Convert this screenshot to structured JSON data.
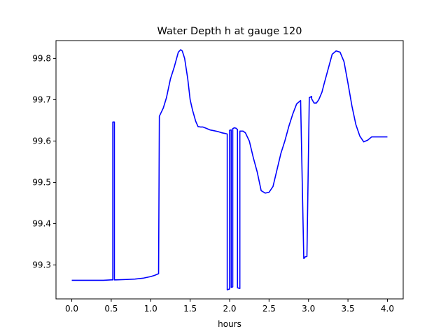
{
  "chart_data": {
    "type": "line",
    "title": "Water Depth h at gauge 120",
    "xlabel": "hours",
    "ylabel": "",
    "xlim": [
      -0.2,
      4.2
    ],
    "ylim": [
      99.218,
      99.843
    ],
    "xticks": [
      0.0,
      0.5,
      1.0,
      1.5,
      2.0,
      2.5,
      3.0,
      3.5,
      4.0
    ],
    "xtick_labels": [
      "0.0",
      "0.5",
      "1.0",
      "1.5",
      "2.0",
      "2.5",
      "3.0",
      "3.5",
      "4.0"
    ],
    "yticks": [
      99.3,
      99.4,
      99.5,
      99.6,
      99.7,
      99.8
    ],
    "ytick_labels": [
      "99.3",
      "99.4",
      "99.5",
      "99.6",
      "99.7",
      "99.8"
    ],
    "grid": false,
    "series": [
      {
        "color": "#0000ff",
        "x": [
          0.0,
          0.1,
          0.2,
          0.3,
          0.4,
          0.5,
          0.52,
          0.52,
          0.54,
          0.54,
          0.56,
          0.7,
          0.8,
          0.9,
          1.0,
          1.05,
          1.1,
          1.11,
          1.13,
          1.16,
          1.2,
          1.25,
          1.3,
          1.35,
          1.38,
          1.4,
          1.43,
          1.47,
          1.5,
          1.53,
          1.57,
          1.6,
          1.63,
          1.66,
          1.7,
          1.75,
          1.8,
          1.85,
          1.9,
          1.95,
          1.97,
          1.97,
          2.0,
          2.0,
          2.02,
          2.02,
          2.04,
          2.04,
          2.06,
          2.08,
          2.1,
          2.1,
          2.13,
          2.13,
          2.15,
          2.17,
          2.2,
          2.25,
          2.3,
          2.35,
          2.4,
          2.45,
          2.5,
          2.55,
          2.6,
          2.65,
          2.7,
          2.75,
          2.8,
          2.85,
          2.9,
          2.94,
          2.95,
          2.95,
          2.98,
          3.01,
          3.04,
          3.04,
          3.07,
          3.1,
          3.13,
          3.17,
          3.2,
          3.25,
          3.3,
          3.35,
          3.4,
          3.45,
          3.5,
          3.55,
          3.6,
          3.65,
          3.7,
          3.75,
          3.8,
          3.85,
          3.9,
          3.95,
          4.0
        ],
        "y": [
          99.263,
          99.263,
          99.263,
          99.263,
          99.263,
          99.264,
          99.264,
          99.646,
          99.646,
          99.264,
          99.264,
          99.265,
          99.266,
          99.268,
          99.272,
          99.275,
          99.279,
          99.66,
          99.668,
          99.68,
          99.705,
          99.75,
          99.78,
          99.815,
          99.821,
          99.818,
          99.8,
          99.75,
          99.7,
          99.675,
          99.648,
          99.635,
          99.634,
          99.634,
          99.631,
          99.627,
          99.625,
          99.623,
          99.62,
          99.618,
          99.617,
          99.24,
          99.242,
          99.626,
          99.627,
          99.246,
          99.247,
          99.63,
          99.632,
          99.631,
          99.628,
          99.245,
          99.243,
          99.624,
          99.624,
          99.624,
          99.62,
          99.6,
          99.56,
          99.525,
          99.48,
          99.474,
          99.476,
          99.49,
          99.53,
          99.57,
          99.6,
          99.635,
          99.665,
          99.69,
          99.698,
          99.316,
          99.317,
          99.319,
          99.321,
          99.705,
          99.708,
          99.702,
          99.692,
          99.692,
          99.7,
          99.718,
          99.74,
          99.775,
          99.81,
          99.818,
          99.815,
          99.792,
          99.74,
          99.685,
          99.64,
          99.612,
          99.598,
          99.602,
          99.61,
          99.61,
          99.61,
          99.61,
          99.61
        ]
      }
    ]
  }
}
